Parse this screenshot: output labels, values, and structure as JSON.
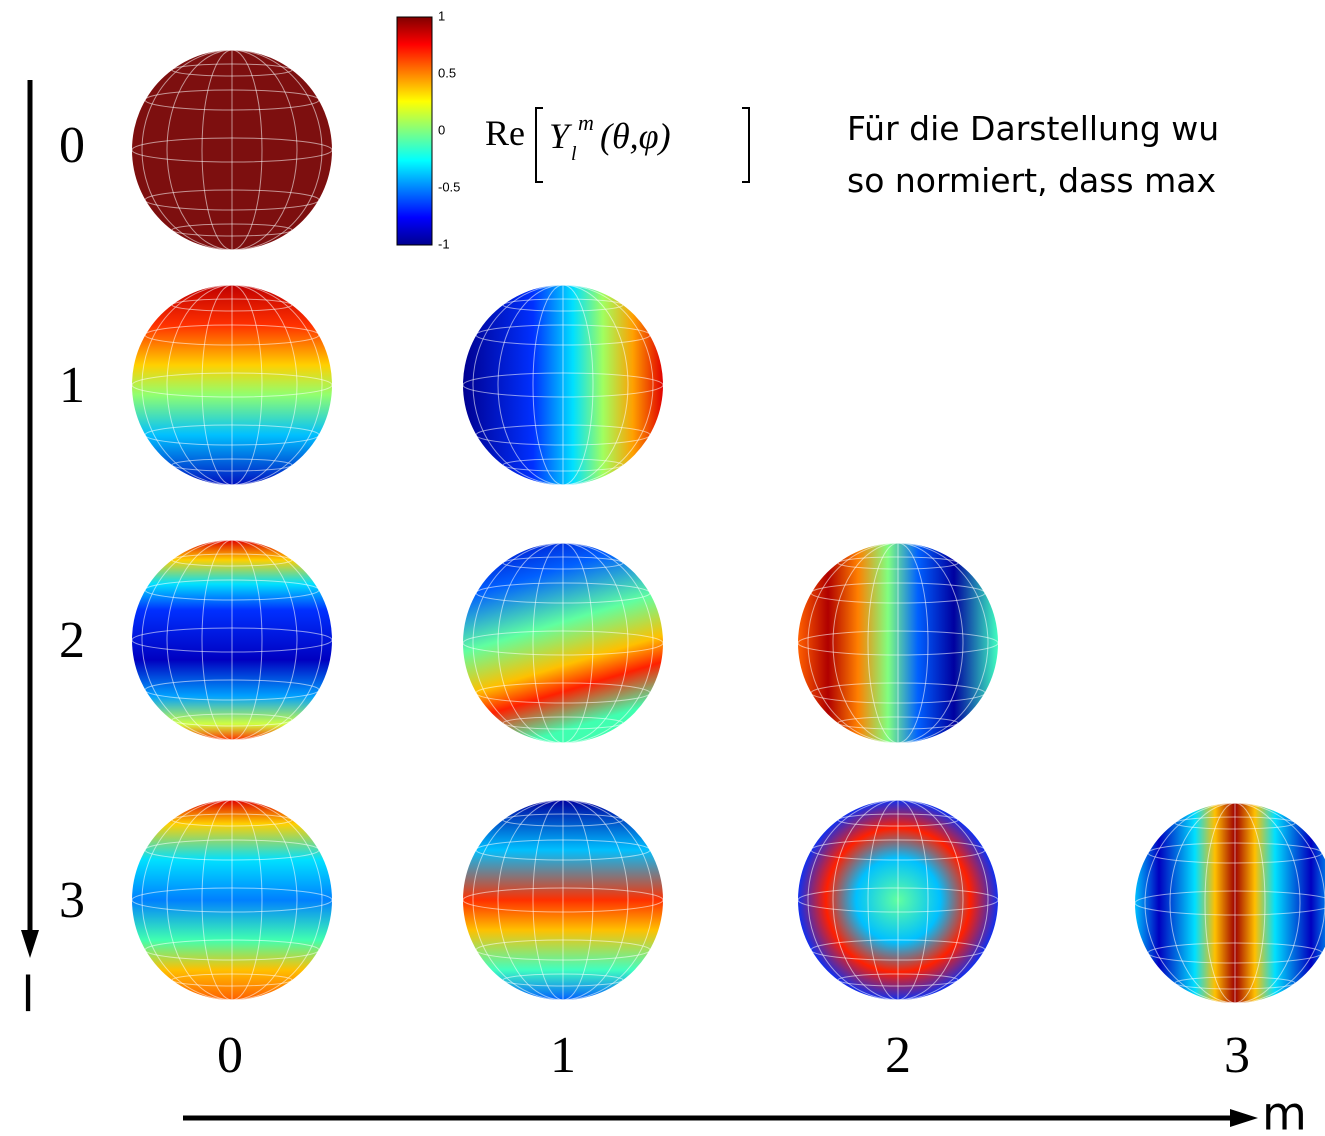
{
  "colorbar": {
    "ticks": [
      "1",
      "0.5",
      "0",
      "-0.5",
      "-1"
    ]
  },
  "formula": {
    "re": "Re",
    "symbol": "Y",
    "sub": "l",
    "sup": "m",
    "args": "(θ,φ)"
  },
  "note": {
    "lines": [
      "Für die Darstellung wu",
      "so normiert, dass max"
    ]
  },
  "rows": {
    "labels": [
      "0",
      "1",
      "2",
      "3"
    ],
    "axis": "l"
  },
  "columns": {
    "labels": [
      "0",
      "1",
      "2",
      "3"
    ],
    "axis": "m"
  }
}
